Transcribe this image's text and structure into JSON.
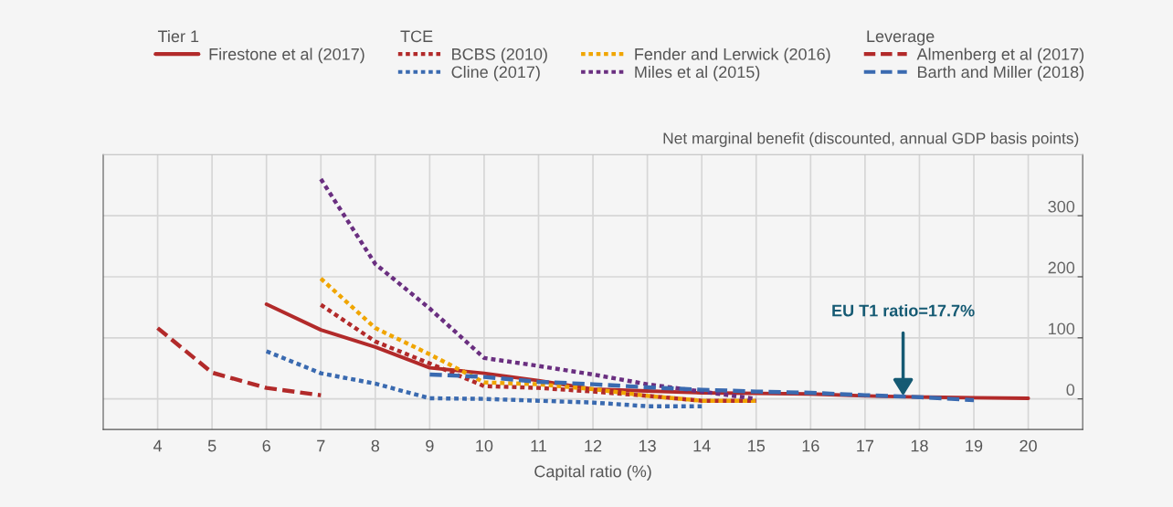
{
  "chart_data": {
    "type": "line",
    "xlabel": "Capital ratio (%)",
    "ylabel": "Net marginal benefit (discounted, annual GDP basis points)",
    "xlim": [
      3,
      21
    ],
    "xticks": [
      4,
      5,
      6,
      7,
      8,
      9,
      10,
      11,
      12,
      13,
      14,
      15,
      16,
      17,
      18,
      19,
      20
    ],
    "ylim": [
      -50,
      400
    ],
    "yticks": [
      0,
      100,
      200,
      300
    ],
    "grid": true,
    "legend": "top",
    "annotations": [
      "Tier 1",
      "TCE",
      "Leverage",
      {
        "text": "EU T1 ratio=17.7%",
        "x": 17.7,
        "y": 5
      }
    ],
    "series": [
      {
        "name": "Firestone et al (2017)",
        "color": "#b22a2a",
        "line_style": "solid",
        "x": [
          6,
          7,
          8,
          9,
          10,
          11,
          12,
          13,
          14,
          15,
          16,
          17,
          18,
          19,
          20
        ],
        "values": [
          155,
          113,
          85,
          51,
          42,
          30,
          16,
          13,
          10,
          9,
          8,
          5,
          3,
          2,
          1
        ]
      },
      {
        "name": "BCBS (2010)",
        "color": "#b22a2a",
        "line_style": "dotted",
        "x": [
          7,
          8,
          9,
          10,
          11,
          12,
          13,
          14,
          15
        ],
        "values": [
          154,
          94,
          58,
          21,
          18,
          12,
          5,
          -3,
          -3
        ]
      },
      {
        "name": "Cline (2017)",
        "color": "#3a6ab0",
        "line_style": "dotted",
        "x": [
          6,
          7,
          8,
          9,
          10,
          11,
          12,
          13,
          14
        ],
        "values": [
          78,
          42,
          25,
          1,
          0,
          -3,
          -6,
          -12,
          -12
        ]
      },
      {
        "name": "Fender and Lerwick (2016)",
        "color": "#f0a500",
        "line_style": "dotted",
        "x": [
          7,
          8,
          9,
          10,
          11,
          12,
          13,
          14,
          15
        ],
        "values": [
          197,
          116,
          73,
          27,
          24,
          16,
          5,
          -3,
          -3
        ]
      },
      {
        "name": "Miles et al (2015)",
        "color": "#6a2f80",
        "line_style": "dotted",
        "x": [
          7,
          8,
          9,
          10,
          11,
          12,
          13,
          14,
          15
        ],
        "values": [
          360,
          221,
          148,
          67,
          54,
          40,
          24,
          12,
          0
        ]
      },
      {
        "name": "Almenberg et al (2017)",
        "color": "#b22a2a",
        "line_style": "dashed",
        "x": [
          4,
          5,
          6,
          7
        ],
        "values": [
          116,
          43,
          18,
          6
        ]
      },
      {
        "name": "Barth and Miller (2018)",
        "color": "#3a6ab0",
        "line_style": "dashed",
        "x": [
          9,
          10,
          11,
          12,
          13,
          14,
          15,
          16,
          17,
          18,
          19
        ],
        "values": [
          40,
          36,
          28,
          24,
          19,
          15,
          12,
          10,
          6,
          3,
          -2
        ]
      }
    ]
  }
}
